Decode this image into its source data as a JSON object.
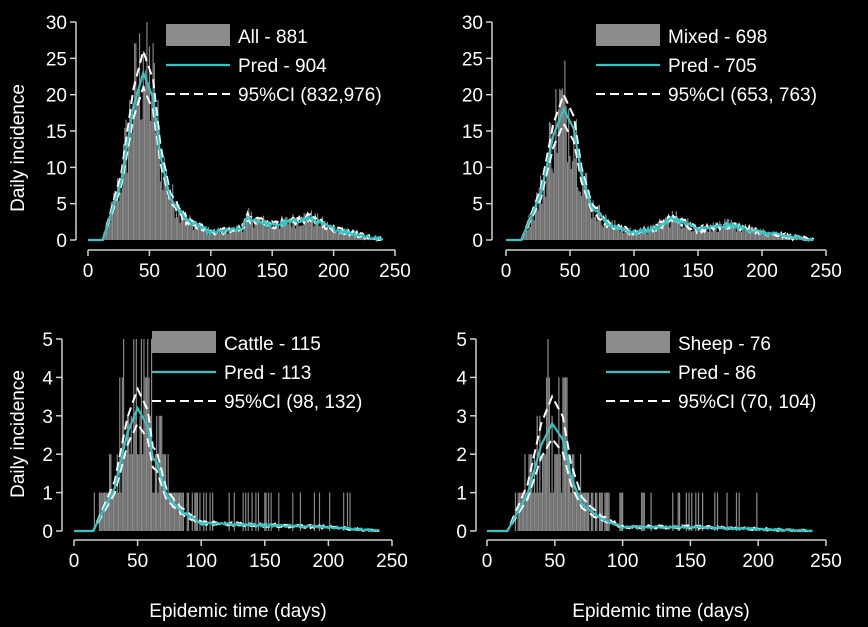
{
  "figure": {
    "ylabel": "Daily incidence",
    "xlabel": "Epidemic time (days)"
  },
  "colors": {
    "background": "#000000",
    "axis": "#d0d0d0",
    "bars": "#8c8c8c",
    "pred": "#33c4c4",
    "ci": "#ffffff"
  },
  "chart_data": [
    {
      "type": "bar",
      "panel": "All",
      "xlim": [
        0,
        250
      ],
      "ylim": [
        0,
        30
      ],
      "xticks": [
        0,
        50,
        100,
        150,
        200,
        250
      ],
      "yticks": [
        0,
        5,
        10,
        15,
        20,
        25,
        30
      ],
      "legend": [
        "All - 881",
        "Pred - 904",
        "95%CI (832,976)"
      ],
      "legend_placement": "top-right",
      "peak": {
        "x": 45,
        "bars": 26,
        "pred": 23,
        "ci_low": 21,
        "ci_high": 26
      },
      "tail": [
        [
          100,
          1
        ],
        [
          125,
          1.5
        ],
        [
          130,
          3
        ],
        [
          150,
          2
        ],
        [
          180,
          3
        ],
        [
          200,
          1.5
        ],
        [
          240,
          0
        ]
      ],
      "onset": 12,
      "pred_end": 240
    },
    {
      "type": "bar",
      "panel": "Mixed",
      "xlim": [
        0,
        250
      ],
      "ylim": [
        0,
        30
      ],
      "xticks": [
        0,
        50,
        100,
        150,
        200,
        250
      ],
      "yticks": [
        0,
        5,
        10,
        15,
        20,
        25,
        30
      ],
      "legend": [
        "Mixed - 698",
        "Pred - 705",
        "95%CI (653, 763)"
      ],
      "legend_placement": "top-right",
      "peak": {
        "x": 45,
        "bars": 20,
        "pred": 18,
        "ci_low": 16,
        "ci_high": 20
      },
      "tail": [
        [
          100,
          1
        ],
        [
          115,
          1.5
        ],
        [
          130,
          3
        ],
        [
          150,
          1.5
        ],
        [
          175,
          2
        ],
        [
          200,
          1
        ],
        [
          240,
          0
        ]
      ],
      "onset": 12,
      "pred_end": 240
    },
    {
      "type": "bar",
      "panel": "Cattle",
      "xlim": [
        0,
        250
      ],
      "ylim": [
        0,
        5
      ],
      "xticks": [
        0,
        50,
        100,
        150,
        200,
        250
      ],
      "yticks": [
        0,
        1,
        2,
        3,
        4,
        5
      ],
      "legend": [
        "Cattle - 115",
        "Pred - 113",
        "95%CI (98, 132)"
      ],
      "legend_placement": "top-right",
      "peak": {
        "x": 50,
        "bars": 5,
        "pred": 3.2,
        "ci_low": 2.8,
        "ci_high": 3.7
      },
      "shoulder": {
        "x": 65,
        "pred": 1.8
      },
      "tail": [
        [
          100,
          0.2
        ],
        [
          150,
          0.15
        ],
        [
          200,
          0.1
        ],
        [
          240,
          0
        ]
      ],
      "onset": 15,
      "pred_end": 240
    },
    {
      "type": "bar",
      "panel": "Sheep",
      "xlim": [
        0,
        250
      ],
      "ylim": [
        0,
        5
      ],
      "xticks": [
        0,
        50,
        100,
        150,
        200,
        250
      ],
      "yticks": [
        0,
        1,
        2,
        3,
        4,
        5
      ],
      "legend": [
        "Sheep - 76",
        "Pred - 86",
        "95%CI (70, 104)"
      ],
      "legend_placement": "top-right",
      "peak": {
        "x": 48,
        "bars": 4,
        "pred": 2.8,
        "ci_low": 2.4,
        "ci_high": 3.5
      },
      "tail": [
        [
          100,
          0.1
        ],
        [
          150,
          0.1
        ],
        [
          200,
          0.05
        ],
        [
          240,
          0
        ]
      ],
      "onset": 15,
      "pred_end": 240
    }
  ]
}
